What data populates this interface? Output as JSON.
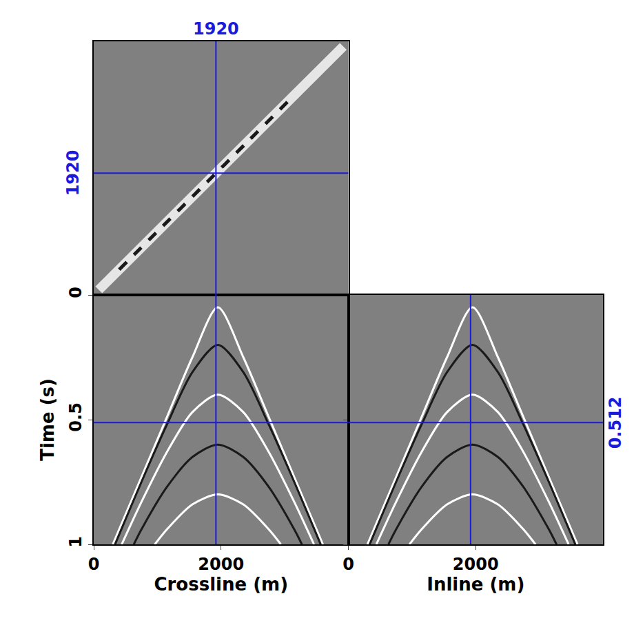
{
  "chart_data": [
    {
      "type": "line",
      "xlim": [
        0,
        4000
      ],
      "ylim": [
        0,
        4000
      ],
      "xticks": [],
      "yticks": [],
      "tick_labels": false,
      "series": [
        {
          "color": "#e6e6e6",
          "line_style": "solid",
          "x": [
            80,
            1000,
            2000,
            3000,
            3920
          ],
          "values": [
            80,
            1000,
            2000,
            3000,
            3920
          ]
        },
        {
          "color": "#1a1a1a",
          "line_style": "dash",
          "x": [
            400,
            1000,
            1700,
            2400,
            3100
          ],
          "values": [
            400,
            1000,
            1700,
            2400,
            3100
          ]
        }
      ]
    },
    {
      "type": "line",
      "x_label": "Crossline (m)",
      "y_label": "Time (s)",
      "xlim": [
        0,
        4000
      ],
      "ylim": [
        1,
        0
      ],
      "xticks": [
        0,
        2000
      ],
      "yticks": [
        0,
        0.5,
        1
      ],
      "series": [
        {
          "color": "#ffffff",
          "x": [
            300,
            750,
            1150,
            1550,
            1950,
            2350,
            2750,
            3150,
            3600
          ],
          "values": [
            1.0,
            0.73,
            0.49,
            0.25,
            0.05,
            0.25,
            0.49,
            0.73,
            1.0
          ]
        },
        {
          "color": "#1a1a1a",
          "x": [
            335,
            750,
            1150,
            1550,
            1950,
            2350,
            2750,
            3150,
            3565
          ],
          "values": [
            1.0,
            0.75,
            0.52,
            0.31,
            0.2,
            0.31,
            0.52,
            0.75,
            1.0
          ]
        },
        {
          "color": "#ffffff",
          "x": [
            440,
            750,
            1150,
            1550,
            1950,
            2350,
            2750,
            3150,
            3460
          ],
          "values": [
            1.0,
            0.83,
            0.63,
            0.47,
            0.4,
            0.47,
            0.63,
            0.83,
            1.0
          ]
        },
        {
          "color": "#1a1a1a",
          "x": [
            630,
            750,
            1150,
            1550,
            1950,
            2350,
            2750,
            3150,
            3270
          ],
          "values": [
            1.0,
            0.94,
            0.77,
            0.65,
            0.6,
            0.65,
            0.77,
            0.94,
            1.0
          ]
        },
        {
          "color": "#ffffff",
          "x": [
            960,
            1150,
            1550,
            1950,
            2350,
            2750,
            2940
          ],
          "values": [
            1.0,
            0.94,
            0.84,
            0.8,
            0.84,
            0.94,
            1.0
          ]
        }
      ]
    },
    {
      "type": "line",
      "x_label": "Inline (m)",
      "xlim": [
        0,
        4000
      ],
      "ylim": [
        1,
        0
      ],
      "xticks": [
        0,
        2000
      ],
      "yticks": [
        0,
        0.5,
        1
      ],
      "tick_labels": "x",
      "series": [
        {
          "color": "#ffffff",
          "x": [
            300,
            750,
            1150,
            1550,
            1950,
            2350,
            2750,
            3150,
            3600
          ],
          "values": [
            1.0,
            0.73,
            0.49,
            0.25,
            0.05,
            0.25,
            0.49,
            0.73,
            1.0
          ]
        },
        {
          "color": "#1a1a1a",
          "x": [
            335,
            750,
            1150,
            1550,
            1950,
            2350,
            2750,
            3150,
            3565
          ],
          "values": [
            1.0,
            0.75,
            0.52,
            0.31,
            0.2,
            0.31,
            0.52,
            0.75,
            1.0
          ]
        },
        {
          "color": "#ffffff",
          "x": [
            440,
            750,
            1150,
            1550,
            1950,
            2350,
            2750,
            3150,
            3460
          ],
          "values": [
            1.0,
            0.83,
            0.63,
            0.47,
            0.4,
            0.47,
            0.63,
            0.83,
            1.0
          ]
        },
        {
          "color": "#1a1a1a",
          "x": [
            630,
            750,
            1150,
            1550,
            1950,
            2350,
            2750,
            3150,
            3270
          ],
          "values": [
            1.0,
            0.94,
            0.77,
            0.65,
            0.6,
            0.65,
            0.77,
            0.94,
            1.0
          ]
        },
        {
          "color": "#ffffff",
          "x": [
            960,
            1150,
            1550,
            1950,
            2350,
            2750,
            2940
          ],
          "values": [
            1.0,
            0.94,
            0.84,
            0.8,
            0.84,
            0.94,
            1.0
          ]
        }
      ]
    }
  ],
  "cursors": {
    "crossline": 1920,
    "inline": 1920,
    "time": 0.512,
    "color": "#1a1adc"
  }
}
